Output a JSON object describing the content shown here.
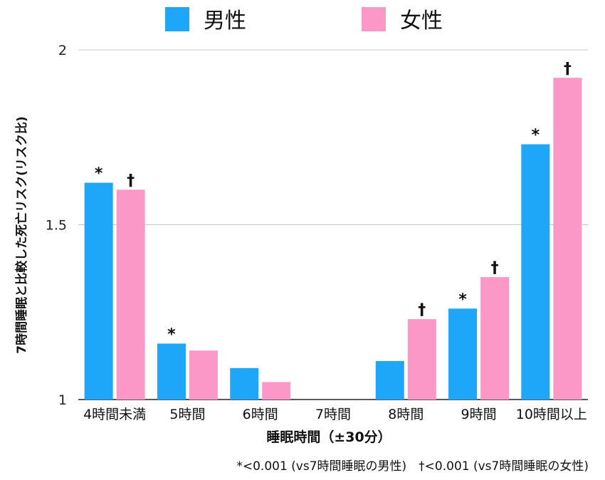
{
  "chart_data": {
    "type": "bar",
    "categories": [
      "4時間未満",
      "5時間",
      "6時間",
      "7時間",
      "8時間",
      "9時間",
      "10時間以上"
    ],
    "series": [
      {
        "name": "男性",
        "color": "#1ea6f8",
        "values": [
          1.62,
          1.16,
          1.09,
          null,
          1.11,
          1.26,
          1.73
        ],
        "marks": [
          "*",
          "*",
          "",
          "",
          "",
          "*",
          "*"
        ]
      },
      {
        "name": "女性",
        "color": "#fb98c8",
        "values": [
          1.6,
          1.14,
          1.05,
          null,
          1.23,
          1.35,
          1.92
        ],
        "marks": [
          "†",
          "",
          "",
          "",
          "†",
          "†",
          "†"
        ]
      }
    ],
    "xlabel": "睡眠時間（±30分）",
    "ylabel": "7時間睡眠と比較した死亡リスク(リスク比)",
    "ylim": [
      1,
      2
    ],
    "yticks": [
      "1",
      "1.5",
      "2"
    ],
    "grid": true,
    "legend_position": "top",
    "footnote": "*<0.001 (vs7時間睡眠の男性)　†<0.001 (vs7時間睡眠の女性)"
  }
}
